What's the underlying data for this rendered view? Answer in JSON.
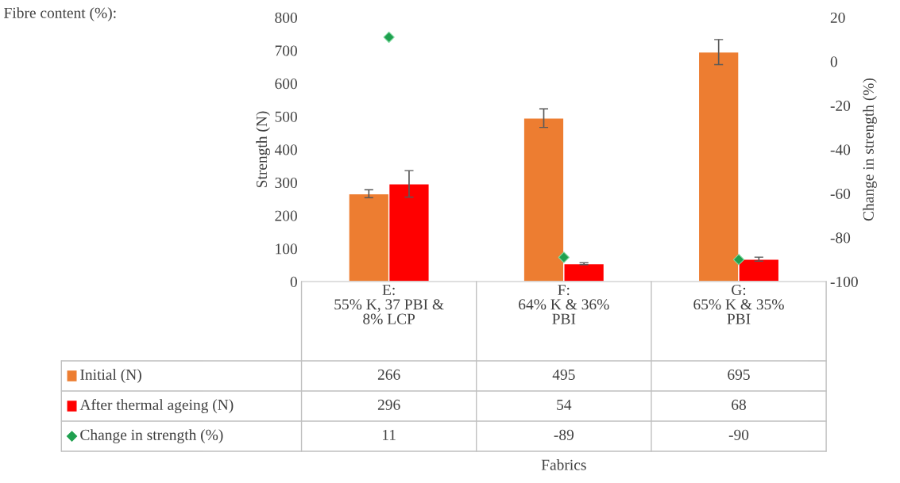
{
  "chart_data": {
    "type": "bar",
    "categories": [
      "E:\n55% K, 37 PBI &\n8% LCP",
      "F:\n64% K & 36%\nPBI",
      "G:\n65% K & 35%\nPBI"
    ],
    "series": [
      {
        "name": "Initial (N)",
        "color": "#ed7d31",
        "values": [
          266,
          495,
          695
        ],
        "errors": [
          12,
          28,
          38
        ]
      },
      {
        "name": "After thermal ageing (N)",
        "color": "#ff0000",
        "values": [
          296,
          54,
          68
        ],
        "errors": [
          40,
          3,
          6
        ]
      },
      {
        "name": "Change in strength (%)",
        "type": "scatter",
        "axis": "y2",
        "marker": "diamond",
        "color": "#1fa04f",
        "values": [
          11,
          -89,
          -90
        ]
      }
    ],
    "ylim": [
      0,
      800
    ],
    "yticks": [
      0,
      100,
      200,
      300,
      400,
      500,
      600,
      700,
      800
    ],
    "y2lim": [
      -100,
      20
    ],
    "y2ticks": [
      -100,
      -80,
      -60,
      -40,
      -20,
      0,
      20
    ],
    "ylabel": "Strength (N)",
    "y2label": "Change in strength (%)",
    "annotations": [
      "Fibre content (%):",
      "Fabrics"
    ],
    "data_labels": true,
    "legend": "bottom",
    "grid": false
  }
}
